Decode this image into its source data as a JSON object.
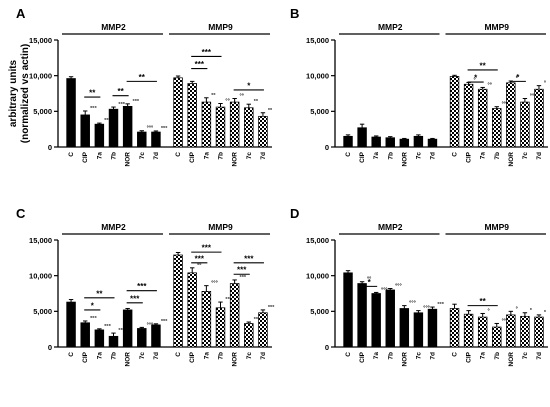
{
  "chart_data": [
    {
      "panel": "A",
      "type": "bar",
      "ylabel": "arbitrary units\n(normalized vs actin)",
      "ylim": [
        0,
        15000
      ],
      "yticks": [
        "0",
        "5,000",
        "10,000",
        "15,000"
      ],
      "categories": [
        "C",
        "CIP",
        "7a",
        "7b",
        "NOR",
        "7c",
        "7d"
      ],
      "groups": [
        {
          "name": "MMP2",
          "pattern": "solid",
          "values": [
            9600,
            4500,
            3200,
            5300,
            5700,
            2100,
            2100
          ],
          "errors": [
            250,
            550,
            150,
            300,
            350,
            180,
            150
          ],
          "annotations": [
            "",
            "°°°",
            "°°°",
            "°°°",
            "°°°",
            "°°°",
            "°°°"
          ],
          "brackets": [
            {
              "from": 1,
              "to": 2,
              "label": "**",
              "y": 7000
            },
            {
              "from": 3,
              "to": 4,
              "label": "**",
              "y": 7200
            },
            {
              "from": 4,
              "to": 6,
              "label": "**",
              "y": 9200
            }
          ]
        },
        {
          "name": "MMP9",
          "pattern": "checker",
          "values": [
            9700,
            8900,
            6300,
            5600,
            6300,
            5500,
            4300
          ],
          "errors": [
            250,
            300,
            600,
            500,
            500,
            500,
            500
          ],
          "annotations": [
            "",
            "",
            "°°",
            "°°",
            "°°",
            "°°",
            "°°"
          ],
          "brackets": [
            {
              "from": 1,
              "to": 2,
              "label": "***",
              "y": 11000
            },
            {
              "from": 1,
              "to": 3,
              "label": "***",
              "y": 12700
            },
            {
              "from": 4,
              "to": 6,
              "label": "*",
              "y": 8000
            }
          ]
        }
      ]
    },
    {
      "panel": "B",
      "type": "bar",
      "ylim": [
        0,
        15000
      ],
      "yticks": [
        "0",
        "5,000",
        "10,000",
        "15,000"
      ],
      "categories": [
        "C",
        "CIP",
        "7a",
        "7b",
        "NOR",
        "7c",
        "7d"
      ],
      "groups": [
        {
          "name": "MMP2",
          "pattern": "solid",
          "values": [
            1500,
            2700,
            1400,
            1300,
            1100,
            1500,
            1100
          ],
          "errors": [
            200,
            500,
            150,
            150,
            100,
            200,
            100
          ],
          "annotations": [
            "",
            "",
            "",
            "",
            "",
            "",
            ""
          ],
          "brackets": []
        },
        {
          "name": "MMP9",
          "pattern": "checker",
          "values": [
            9900,
            8800,
            8100,
            5400,
            9000,
            6300,
            8100
          ],
          "errors": [
            150,
            250,
            250,
            250,
            250,
            500,
            500
          ],
          "annotations": [
            "",
            "°",
            "°°",
            "°°°",
            "°",
            "°°°",
            "°"
          ],
          "brackets": [
            {
              "from": 1,
              "to": 2,
              "label": "*",
              "y": 9100
            },
            {
              "from": 1,
              "to": 3,
              "label": "**",
              "y": 10800
            },
            {
              "from": 4,
              "to": 5,
              "label": "*",
              "y": 9200
            }
          ]
        }
      ]
    },
    {
      "panel": "C",
      "type": "bar",
      "ylim": [
        0,
        15000
      ],
      "yticks": [
        "0",
        "5,000",
        "10,000",
        "15,000"
      ],
      "categories": [
        "C",
        "CIP",
        "7a",
        "7b",
        "NOR",
        "7c",
        "7d"
      ],
      "groups": [
        {
          "name": "MMP2",
          "pattern": "solid",
          "values": [
            6300,
            3400,
            2400,
            1500,
            5200,
            2600,
            3100
          ],
          "errors": [
            350,
            250,
            150,
            450,
            200,
            150,
            150
          ],
          "annotations": [
            "",
            "°°°",
            "°°°",
            "°°°",
            "",
            "°°°",
            "°°°"
          ],
          "brackets": [
            {
              "from": 1,
              "to": 2,
              "label": "*",
              "y": 5200
            },
            {
              "from": 1,
              "to": 3,
              "label": "**",
              "y": 6900
            },
            {
              "from": 4,
              "to": 5,
              "label": "***",
              "y": 6200
            },
            {
              "from": 4,
              "to": 6,
              "label": "***",
              "y": 7900
            }
          ]
        },
        {
          "name": "MMP9",
          "pattern": "checker",
          "values": [
            12900,
            10400,
            7800,
            5500,
            8900,
            3300,
            4800
          ],
          "errors": [
            350,
            700,
            800,
            800,
            500,
            200,
            400
          ],
          "annotations": [
            "",
            "°°",
            "°°°",
            "°°°",
            "°°°",
            "°°°",
            "°°°"
          ],
          "brackets": [
            {
              "from": 1,
              "to": 2,
              "label": "***",
              "y": 11800
            },
            {
              "from": 1,
              "to": 3,
              "label": "***",
              "y": 13300
            },
            {
              "from": 4,
              "to": 5,
              "label": "***",
              "y": 10200
            },
            {
              "from": 4,
              "to": 6,
              "label": "***",
              "y": 11800
            }
          ]
        }
      ]
    },
    {
      "panel": "D",
      "type": "bar",
      "ylim": [
        0,
        15000
      ],
      "yticks": [
        "0",
        "5,000",
        "10,000",
        "15,000"
      ],
      "categories": [
        "C",
        "CIP",
        "7a",
        "7b",
        "NOR",
        "7c",
        "7d"
      ],
      "groups": [
        {
          "name": "MMP2",
          "pattern": "solid",
          "values": [
            10400,
            8900,
            7500,
            8000,
            5400,
            4800,
            5300
          ],
          "errors": [
            300,
            250,
            150,
            200,
            400,
            300,
            300
          ],
          "annotations": [
            "",
            "°°",
            "°°°",
            "°°°",
            "°°°",
            "°°°",
            "°°°"
          ],
          "brackets": [
            {
              "from": 1,
              "to": 2,
              "label": "*",
              "y": 8500
            }
          ]
        },
        {
          "name": "MMP9",
          "pattern": "checker",
          "values": [
            5400,
            4600,
            4200,
            2800,
            4500,
            4300,
            4200
          ],
          "errors": [
            600,
            500,
            500,
            500,
            500,
            500,
            300
          ],
          "annotations": [
            "",
            "",
            "°",
            "°°",
            "°",
            "°",
            "°"
          ],
          "brackets": [
            {
              "from": 1,
              "to": 3,
              "label": "**",
              "y": 5800
            }
          ]
        }
      ]
    }
  ]
}
